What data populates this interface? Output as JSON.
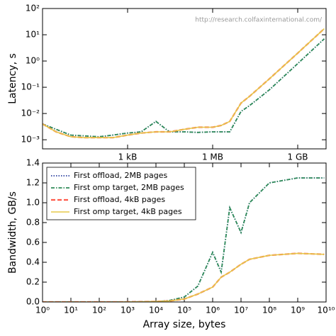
{
  "chart_data": [
    {
      "type": "line",
      "ylabel": "Latency, s",
      "annotation": "http://research.colfaxinternational.com/",
      "xlog": true,
      "ylog": true,
      "grid": false,
      "xlim": [
        1,
        10000000000
      ],
      "ylim": [
        0.00045,
        100
      ],
      "xticks": [
        {
          "value": 1000,
          "label": "1 kB"
        },
        {
          "value": 1000000,
          "label": "1 MB"
        },
        {
          "value": 1000000000,
          "label": "1 GB"
        }
      ],
      "yticks": [
        {
          "value": 0.001,
          "label": "10⁻³"
        },
        {
          "value": 0.01,
          "label": "10⁻²"
        },
        {
          "value": 0.1,
          "label": "10⁻¹"
        },
        {
          "value": 1,
          "label": "10⁰"
        },
        {
          "value": 10,
          "label": "10¹"
        },
        {
          "value": 100,
          "label": "10²"
        }
      ],
      "x": [
        1,
        3,
        10,
        30,
        100,
        300,
        1000,
        3000,
        10000,
        30000,
        100000,
        300000,
        1000000,
        2000000,
        4000000,
        10000000,
        20000000,
        100000000,
        1000000000,
        8589934592
      ],
      "series": [
        {
          "name": "First offload, 2MB pages",
          "color": "#2a3f9f",
          "linestyle": "dotted",
          "values": [
            0.004,
            0.0025,
            0.0015,
            0.0014,
            0.0013,
            0.0015,
            0.0018,
            0.002,
            0.005,
            0.002,
            0.002,
            0.0019,
            0.002,
            0.002,
            0.002,
            0.012,
            0.02,
            0.08,
            0.8,
            7
          ]
        },
        {
          "name": "First omp target, 2MB pages",
          "color": "#2e8b57",
          "linestyle": "dashdot",
          "values": [
            0.004,
            0.0025,
            0.0015,
            0.0014,
            0.0013,
            0.0015,
            0.0018,
            0.002,
            0.005,
            0.002,
            0.002,
            0.0019,
            0.002,
            0.002,
            0.002,
            0.012,
            0.02,
            0.08,
            0.8,
            7
          ]
        },
        {
          "name": "First offload, 4kB pages",
          "color": "#ff5a4a",
          "linestyle": "dashed",
          "values": [
            0.004,
            0.002,
            0.0013,
            0.0012,
            0.0012,
            0.0012,
            0.0015,
            0.0018,
            0.002,
            0.002,
            0.0025,
            0.003,
            0.003,
            0.0035,
            0.005,
            0.025,
            0.045,
            0.21,
            2,
            17
          ]
        },
        {
          "name": "First omp target, 4kB pages",
          "color": "#e6c84a",
          "linestyle": "solid",
          "values": [
            0.004,
            0.002,
            0.0013,
            0.0012,
            0.0012,
            0.0012,
            0.0015,
            0.0018,
            0.002,
            0.002,
            0.0025,
            0.003,
            0.003,
            0.0035,
            0.005,
            0.025,
            0.045,
            0.21,
            2,
            17
          ]
        }
      ]
    },
    {
      "type": "line",
      "xlabel": "Array size, bytes",
      "ylabel": "Bandwidth, GB/s",
      "legend": "upper left",
      "xlog": true,
      "ylog": false,
      "grid": false,
      "xlim": [
        1,
        10000000000
      ],
      "ylim": [
        0,
        1.4
      ],
      "xticks": [
        {
          "value": 1,
          "label": "10⁰"
        },
        {
          "value": 10,
          "label": "10¹"
        },
        {
          "value": 100,
          "label": "10²"
        },
        {
          "value": 1000,
          "label": "10³"
        },
        {
          "value": 10000,
          "label": "10⁴"
        },
        {
          "value": 100000,
          "label": "10⁵"
        },
        {
          "value": 1000000,
          "label": "10⁶"
        },
        {
          "value": 10000000,
          "label": "10⁷"
        },
        {
          "value": 100000000,
          "label": "10⁸"
        },
        {
          "value": 1000000000,
          "label": "10⁹"
        },
        {
          "value": 10000000000,
          "label": "10¹⁰"
        }
      ],
      "yticks": [
        {
          "value": 0,
          "label": "0.0"
        },
        0.2,
        0.4,
        0.6,
        0.8,
        {
          "value": 1,
          "label": "1.0"
        },
        1.2,
        1.4
      ],
      "x": [
        1,
        3,
        10,
        30,
        100,
        300,
        1000,
        3000,
        10000,
        30000,
        100000,
        300000,
        1000000,
        2000000,
        4000000,
        10000000,
        20000000,
        100000000,
        1000000000,
        8589934592
      ],
      "series": [
        {
          "name": "First offload, 2MB pages",
          "color": "#2a3f9f",
          "linestyle": "dotted",
          "values": [
            0,
            0,
            0,
            0,
            0,
            0,
            0.001,
            0.002,
            0.002,
            0.015,
            0.05,
            0.16,
            0.5,
            0.3,
            0.95,
            0.7,
            1.0,
            1.2,
            1.25,
            1.25
          ]
        },
        {
          "name": "First omp target, 2MB pages",
          "color": "#2e8b57",
          "linestyle": "dashdot",
          "values": [
            0,
            0,
            0,
            0,
            0,
            0,
            0.001,
            0.002,
            0.002,
            0.015,
            0.05,
            0.16,
            0.5,
            0.3,
            0.95,
            0.7,
            1.0,
            1.2,
            1.25,
            1.25
          ]
        },
        {
          "name": "First offload, 4kB pages",
          "color": "#ff5a4a",
          "linestyle": "dashed",
          "values": [
            0,
            0,
            0,
            0,
            0,
            0,
            0.001,
            0.002,
            0.005,
            0.01,
            0.03,
            0.08,
            0.15,
            0.25,
            0.3,
            0.38,
            0.43,
            0.47,
            0.49,
            0.48
          ]
        },
        {
          "name": "First omp target, 4kB pages",
          "color": "#e6c84a",
          "linestyle": "solid",
          "values": [
            0,
            0,
            0,
            0,
            0,
            0,
            0.001,
            0.002,
            0.005,
            0.01,
            0.03,
            0.08,
            0.15,
            0.25,
            0.3,
            0.38,
            0.43,
            0.47,
            0.49,
            0.48
          ]
        }
      ]
    }
  ]
}
